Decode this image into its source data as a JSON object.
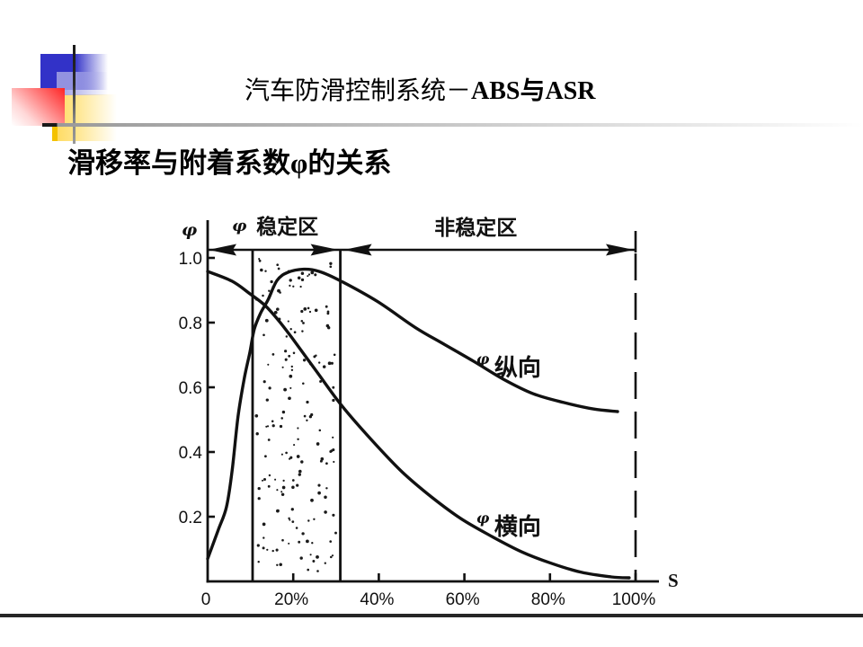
{
  "slide": {
    "title_prefix": "汽车防滑控制系统－",
    "title_suffix": "ABS与ASR",
    "subtitle": "滑移率与附着系数φ的关系"
  },
  "chart_data": {
    "type": "line",
    "title": "滑移率与附着系数φ的关系",
    "xlabel": "S",
    "ylabel": "φ",
    "xlim": [
      0,
      100
    ],
    "ylim": [
      0,
      1.0
    ],
    "x_unit": "%",
    "grid": false,
    "legend": "inline curve labels",
    "x_ticks": [
      {
        "value": 0,
        "label": "0"
      },
      {
        "value": 20,
        "label": "20%"
      },
      {
        "value": 40,
        "label": "40%"
      },
      {
        "value": 60,
        "label": "60%"
      },
      {
        "value": 80,
        "label": "80%"
      },
      {
        "value": 100,
        "label": "100%"
      }
    ],
    "y_ticks": [
      {
        "value": 0.2,
        "label": "0.2"
      },
      {
        "value": 0.4,
        "label": "0.4"
      },
      {
        "value": 0.6,
        "label": "0.6"
      },
      {
        "value": 0.8,
        "label": "0.8"
      },
      {
        "value": 1.0,
        "label": "1.0"
      }
    ],
    "series": [
      {
        "name": "φ纵向",
        "symbol": "φ",
        "label": "纵向",
        "label_at": [
          62.8,
          0.672
        ],
        "points": [
          [
            0,
            0.07
          ],
          [
            2.5,
            0.16
          ],
          [
            4.4,
            0.23
          ],
          [
            5.7,
            0.34
          ],
          [
            7.1,
            0.51
          ],
          [
            8.6,
            0.63
          ],
          [
            9.9,
            0.71
          ],
          [
            10.9,
            0.78
          ],
          [
            12.4,
            0.83
          ],
          [
            14.1,
            0.87
          ],
          [
            16.2,
            0.93
          ],
          [
            18.7,
            0.955
          ],
          [
            22.5,
            0.965
          ],
          [
            26.1,
            0.958
          ],
          [
            30.9,
            0.93
          ],
          [
            39.7,
            0.865
          ],
          [
            48.5,
            0.785
          ],
          [
            55.0,
            0.735
          ],
          [
            62.2,
            0.68
          ],
          [
            69.1,
            0.625
          ],
          [
            76.1,
            0.58
          ],
          [
            83.2,
            0.553
          ],
          [
            90.1,
            0.533
          ],
          [
            95.8,
            0.525
          ]
        ]
      },
      {
        "name": "φ横向",
        "symbol": "φ",
        "label": "横向",
        "label_at": [
          62.8,
          0.181
        ],
        "points": [
          [
            0,
            0.958
          ],
          [
            5.7,
            0.928
          ],
          [
            9.9,
            0.889
          ],
          [
            13.4,
            0.853
          ],
          [
            16.6,
            0.806
          ],
          [
            19.7,
            0.753
          ],
          [
            25.4,
            0.65
          ],
          [
            31.3,
            0.544
          ],
          [
            38.2,
            0.439
          ],
          [
            45.4,
            0.339
          ],
          [
            52.3,
            0.261
          ],
          [
            59.2,
            0.194
          ],
          [
            66.4,
            0.139
          ],
          [
            73.3,
            0.092
          ],
          [
            80.3,
            0.056
          ],
          [
            87.4,
            0.028
          ],
          [
            94.3,
            0.014
          ],
          [
            98.5,
            0.011
          ]
        ]
      }
    ],
    "regions": [
      {
        "name": "φ 稳定区",
        "symbol": "φ",
        "label": "稳定区",
        "from": 0,
        "to": 31,
        "shaded_from": 10.5,
        "shaded_to": 31,
        "fill": "stippled",
        "label_s": 5.7
      },
      {
        "name": "非稳定区",
        "label": "非稳定区",
        "from": 31,
        "to": 100,
        "boundary_style": "dashed",
        "label_s": 53.0
      }
    ]
  }
}
